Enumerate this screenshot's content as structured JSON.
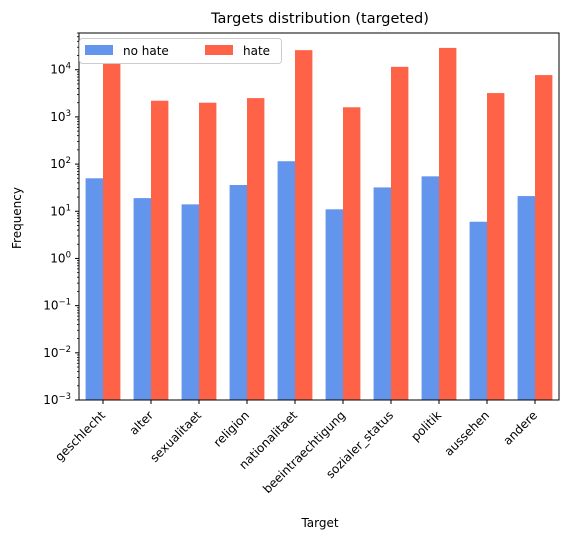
{
  "chart_data": {
    "type": "bar",
    "title": "Targets distribution (targeted)",
    "xlabel": "Target",
    "ylabel": "Frequency",
    "yscale": "log",
    "ylim": [
      0.001,
      60000
    ],
    "yticks": [
      {
        "value": 0.001,
        "base": "10",
        "exp": "−3"
      },
      {
        "value": 0.01,
        "base": "10",
        "exp": "−2"
      },
      {
        "value": 0.1,
        "base": "10",
        "exp": "−1"
      },
      {
        "value": 1,
        "base": "10",
        "exp": "0"
      },
      {
        "value": 10,
        "base": "10",
        "exp": "1"
      },
      {
        "value": 100,
        "base": "10",
        "exp": "2"
      },
      {
        "value": 1000,
        "base": "10",
        "exp": "3"
      },
      {
        "value": 10000,
        "base": "10",
        "exp": "4"
      }
    ],
    "categories": [
      "geschlecht",
      "alter",
      "sexualitaet",
      "religion",
      "nationalitaet",
      "beeintraechtigung",
      "sozialer_status",
      "politik",
      "aussehen",
      "andere"
    ],
    "series": [
      {
        "name": "no hate",
        "color": "#6495ED",
        "values": [
          50,
          19,
          14,
          36,
          115,
          11,
          32,
          55,
          6,
          21
        ]
      },
      {
        "name": "hate",
        "color": "#FF6347",
        "values": [
          14000,
          2200,
          2000,
          2500,
          26000,
          1600,
          11500,
          29000,
          3200,
          7700
        ]
      }
    ],
    "legend": {
      "placement": "top-left",
      "columns": 2
    },
    "grid": false
  }
}
